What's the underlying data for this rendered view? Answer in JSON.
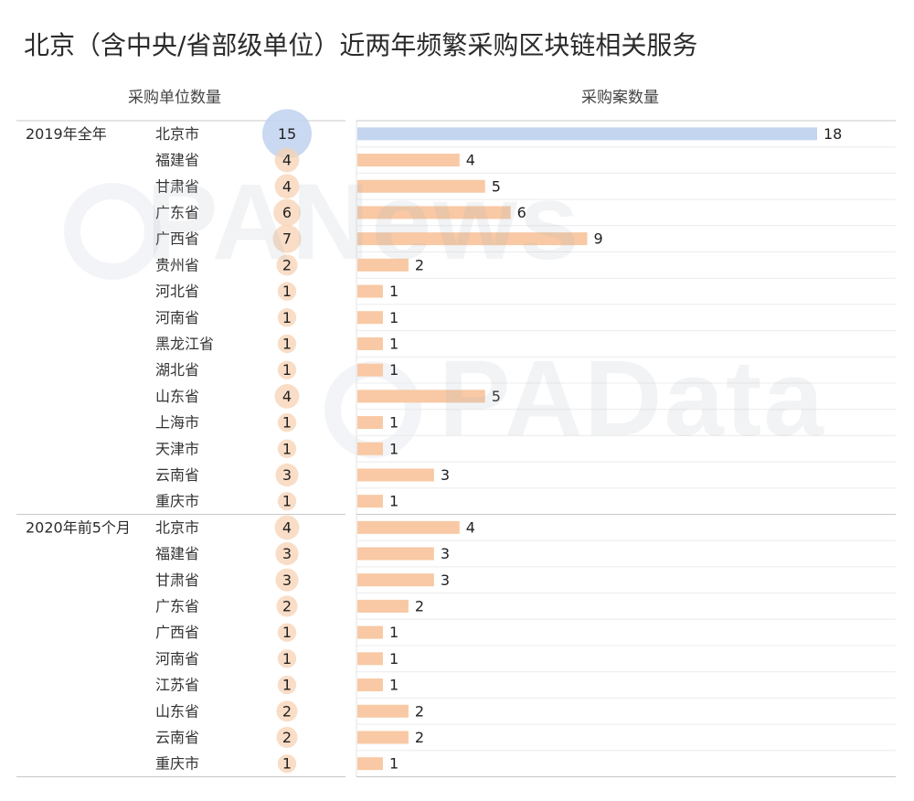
{
  "title": "北京（含中央/省部级单位）近两年频繁采购区块链相关服务",
  "left_header": "采购单位数量",
  "right_header": "采购案数量",
  "watermarks": [
    "PANews",
    "PAData"
  ],
  "colors": {
    "highlight": "#c3d5ef",
    "bar": "#f8c9a4",
    "bubble": "#f7d2b3",
    "grid": "#e3e3e3"
  },
  "chart_data": {
    "type": "bar",
    "groups": [
      {
        "period": "2019年全年",
        "rows": [
          {
            "region": "北京市",
            "units": 15,
            "cases": 18
          },
          {
            "region": "福建省",
            "units": 4,
            "cases": 4
          },
          {
            "region": "甘肃省",
            "units": 4,
            "cases": 5
          },
          {
            "region": "广东省",
            "units": 6,
            "cases": 6
          },
          {
            "region": "广西省",
            "units": 7,
            "cases": 9
          },
          {
            "region": "贵州省",
            "units": 2,
            "cases": 2
          },
          {
            "region": "河北省",
            "units": 1,
            "cases": 1
          },
          {
            "region": "河南省",
            "units": 1,
            "cases": 1
          },
          {
            "region": "黑龙江省",
            "units": 1,
            "cases": 1
          },
          {
            "region": "湖北省",
            "units": 1,
            "cases": 1
          },
          {
            "region": "山东省",
            "units": 4,
            "cases": 5
          },
          {
            "region": "上海市",
            "units": 1,
            "cases": 1
          },
          {
            "region": "天津市",
            "units": 1,
            "cases": 1
          },
          {
            "region": "云南省",
            "units": 3,
            "cases": 3
          },
          {
            "region": "重庆市",
            "units": 1,
            "cases": 1
          }
        ]
      },
      {
        "period": "2020年前5个月",
        "rows": [
          {
            "region": "北京市",
            "units": 4,
            "cases": 4
          },
          {
            "region": "福建省",
            "units": 3,
            "cases": 3
          },
          {
            "region": "甘肃省",
            "units": 3,
            "cases": 3
          },
          {
            "region": "广东省",
            "units": 2,
            "cases": 2
          },
          {
            "region": "广西省",
            "units": 1,
            "cases": 1
          },
          {
            "region": "河南省",
            "units": 1,
            "cases": 1
          },
          {
            "region": "江苏省",
            "units": 1,
            "cases": 1
          },
          {
            "region": "山东省",
            "units": 2,
            "cases": 2
          },
          {
            "region": "云南省",
            "units": 2,
            "cases": 2
          },
          {
            "region": "重庆市",
            "units": 1,
            "cases": 1
          }
        ]
      }
    ],
    "highlight": {
      "period": "2019年全年",
      "region": "北京市"
    },
    "cases_range": [
      0,
      18
    ],
    "grid": true
  }
}
